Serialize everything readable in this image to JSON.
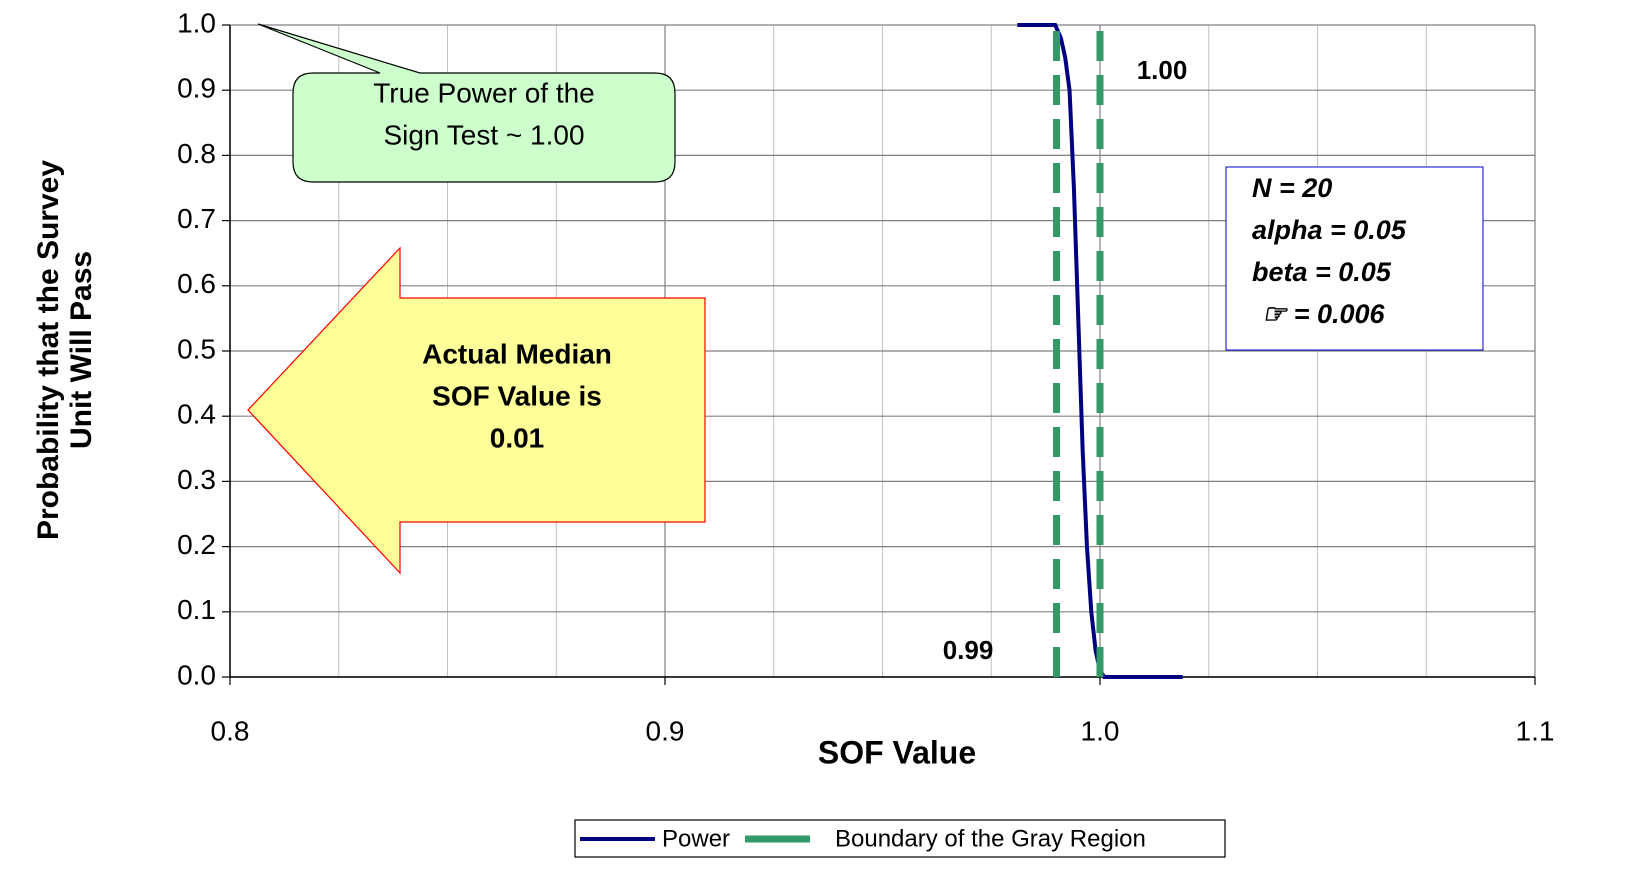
{
  "chart_data": {
    "type": "line",
    "xlabel": "SOF Value",
    "ylabel": [
      "Probability that the Survey",
      "Unit Will Pass"
    ],
    "xlim": [
      0.8,
      1.1
    ],
    "ylim": [
      0,
      1
    ],
    "xticks": [
      0.8,
      0.9,
      {
        "value": 1.0,
        "label": "1.0"
      },
      1.1
    ],
    "xminorticks": [
      0.825,
      0.85,
      0.875,
      0.925,
      0.95,
      0.975,
      1.025,
      1.05,
      1.075
    ],
    "yticks": [
      {
        "value": 0,
        "label": "0.0"
      },
      0.1,
      0.2,
      0.3,
      0.4,
      0.5,
      0.6,
      0.7,
      0.8,
      0.9,
      {
        "value": 1,
        "label": "1.0"
      }
    ],
    "grid": true,
    "series": [
      {
        "name": "Power",
        "color": "#000080",
        "style": "solid",
        "x": [
          0.981,
          0.9897,
          0.991,
          0.992,
          0.993,
          0.994,
          0.995,
          0.996,
          0.997,
          0.998,
          0.999,
          1.0,
          1.001,
          1.019
        ],
        "values": [
          1.0,
          1.0,
          0.98,
          0.95,
          0.9,
          0.75,
          0.55,
          0.35,
          0.2,
          0.1,
          0.04,
          0.01,
          0.0,
          0.0
        ]
      },
      {
        "name": "Boundary of the Gray Region",
        "color": "#339966",
        "style": "dashed",
        "x": [
          0.99,
          0.99,
          null,
          1.0,
          1.0
        ],
        "values": [
          0,
          1,
          null,
          0,
          1
        ]
      }
    ],
    "annotations": {
      "upper_bound": "1.00",
      "lower_bound": "0.99",
      "callout": [
        "True Power of the",
        "Sign Test ~ 1.00"
      ],
      "arrow": [
        "Actual Median",
        "SOF Value is",
        "0.01"
      ],
      "params": [
        "N =  20",
        "alpha = 0.05",
        "beta = 0.05",
        "☞ = 0.006"
      ]
    }
  }
}
